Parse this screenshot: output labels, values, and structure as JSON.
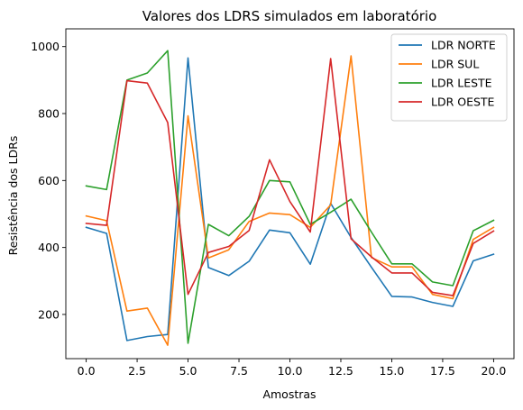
{
  "chart_data": {
    "type": "line",
    "title": "Valores dos LDRS simulados em laboratório",
    "xlabel": "Amostras",
    "ylabel": "Resistência dos LDRs",
    "xlim": [
      -1,
      21
    ],
    "ylim": [
      68,
      1053
    ],
    "xticks": [
      0.0,
      2.5,
      5.0,
      7.5,
      10.0,
      12.5,
      15.0,
      17.5,
      20.0
    ],
    "xtick_labels": [
      "0.0",
      "2.5",
      "5.0",
      "7.5",
      "10.0",
      "12.5",
      "15.0",
      "17.5",
      "20.0"
    ],
    "yticks": [
      200,
      400,
      600,
      800,
      1000
    ],
    "ytick_labels": [
      "200",
      "400",
      "600",
      "800",
      "1000"
    ],
    "grid": false,
    "legend_position": "top-right",
    "x": [
      0,
      1,
      2,
      3,
      4,
      5,
      6,
      7,
      8,
      9,
      10,
      11,
      12,
      13,
      14,
      15,
      16,
      17,
      18,
      19,
      20
    ],
    "series": [
      {
        "name": "LDR NORTE",
        "color": "#1f77b4",
        "values": [
          460,
          442,
          122,
          134,
          140,
          966,
          340,
          316,
          359,
          452,
          444,
          350,
          532,
          430,
          341,
          254,
          252,
          236,
          224,
          360,
          380
        ]
      },
      {
        "name": "LDR SUL",
        "color": "#ff7f0e",
        "values": [
          494,
          480,
          210,
          219,
          108,
          793,
          369,
          393,
          478,
          503,
          498,
          460,
          527,
          972,
          370,
          342,
          342,
          260,
          247,
          424,
          460
        ]
      },
      {
        "name": "LDR LESTE",
        "color": "#2ca02c",
        "values": [
          584,
          573,
          900,
          921,
          988,
          114,
          469,
          435,
          493,
          600,
          596,
          469,
          505,
          544,
          446,
          351,
          351,
          297,
          286,
          450,
          481
        ]
      },
      {
        "name": "LDR OESTE",
        "color": "#d62728",
        "values": [
          472,
          466,
          898,
          891,
          773,
          260,
          385,
          403,
          451,
          662,
          537,
          446,
          964,
          426,
          372,
          324,
          324,
          266,
          256,
          412,
          449
        ]
      }
    ]
  }
}
